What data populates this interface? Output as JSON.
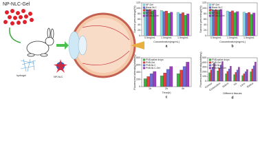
{
  "labels": {
    "title": "NP-NLC-Gel",
    "hydrogel": "hydrogel",
    "nanoparticle": "NP-NLC"
  },
  "chart_data": [
    {
      "type": "bar",
      "panel": "a",
      "ylabel": "Survival percentage(%)",
      "xlabel": "Concentration(mg/mL)",
      "categories": [
        "0.5mg/mL",
        "1.0mg/mL",
        "1.5mg/mL"
      ],
      "series": [
        {
          "name": "NP-Gel",
          "color": "#7fe0e8",
          "values": [
            98,
            92,
            85
          ]
        },
        {
          "name": "Blank NLC",
          "color": "#6b6bd6",
          "values": [
            95,
            88,
            80
          ]
        },
        {
          "name": "NLC-Gel",
          "color": "#e04040",
          "values": [
            96,
            90,
            84
          ]
        },
        {
          "name": "NP-NLC",
          "color": "#3cb043",
          "values": [
            90,
            82,
            75
          ]
        },
        {
          "name": "NP-NLC-Gel",
          "color": "#9b3fc0",
          "values": [
            94,
            86,
            80
          ]
        }
      ],
      "ylim": [
        0,
        120
      ],
      "yticks": [
        0,
        20,
        40,
        60,
        80,
        100,
        120
      ]
    },
    {
      "type": "bar",
      "panel": "b",
      "ylabel": "Survival percentage(%)",
      "xlabel": "Concentration(mg/mL)",
      "categories": [
        "0.5mg/mL",
        "1.0mg/mL",
        "1.5mg/mL"
      ],
      "series": [
        {
          "name": "NP-Gel",
          "color": "#7fe0e8",
          "values": [
            97,
            90,
            86
          ]
        },
        {
          "name": "Blank NLC",
          "color": "#6b6bd6",
          "values": [
            93,
            87,
            82
          ]
        },
        {
          "name": "NLC-Gel",
          "color": "#e04040",
          "values": [
            95,
            91,
            85
          ]
        },
        {
          "name": "NP-NLC",
          "color": "#3cb043",
          "values": [
            92,
            84,
            78
          ]
        },
        {
          "name": "NP-NLC-Gel",
          "color": "#9b3fc0",
          "values": [
            96,
            88,
            83
          ]
        }
      ],
      "ylim": [
        0,
        120
      ],
      "yticks": [
        0,
        20,
        40,
        60,
        80,
        100,
        120
      ]
    },
    {
      "type": "bar",
      "panel": "c",
      "ylabel": "Fluorescent intensity(arbitrary)",
      "xlabel": "Time(h)",
      "categories": [
        "1h",
        "2h",
        "4h"
      ],
      "series": [
        {
          "name": "PNB-saline drops",
          "color": "#3cb043",
          "values": [
            220,
            300,
            360
          ]
        },
        {
          "name": "PNB-Gel",
          "color": "#e04040",
          "values": [
            280,
            380,
            460
          ]
        },
        {
          "name": "PNB-NLC",
          "color": "#6b6bd6",
          "values": [
            360,
            480,
            560
          ]
        },
        {
          "name": "PNB-NLC-Gel",
          "color": "#9b3fc0",
          "values": [
            420,
            560,
            680
          ]
        }
      ],
      "ylim": [
        0,
        800
      ],
      "yticks": [
        0,
        200,
        400,
        600,
        800
      ]
    },
    {
      "type": "bar",
      "panel": "d",
      "ylabel": "Fluorescent intensity(arbitrary)",
      "xlabel": "Different tissues",
      "categories": [
        "Cornea",
        "Conjunctiva",
        "Sclera",
        "Iris",
        "Lens",
        "Retina"
      ],
      "series": [
        {
          "name": "PNB-saline drops",
          "color": "#3cb043",
          "values": [
            180,
            220,
            160,
            140,
            120,
            200
          ]
        },
        {
          "name": "PNB-Gel",
          "color": "#e04040",
          "values": [
            240,
            280,
            210,
            190,
            160,
            260
          ]
        },
        {
          "name": "PNB-NLC",
          "color": "#6b6bd6",
          "values": [
            300,
            340,
            260,
            240,
            200,
            330
          ]
        },
        {
          "name": "PNB-NLC-Gel",
          "color": "#9b3fc0",
          "values": [
            380,
            420,
            320,
            300,
            250,
            410
          ]
        }
      ],
      "ylim": [
        0,
        500
      ],
      "yticks": [
        0,
        100,
        200,
        300,
        400,
        500
      ]
    }
  ]
}
